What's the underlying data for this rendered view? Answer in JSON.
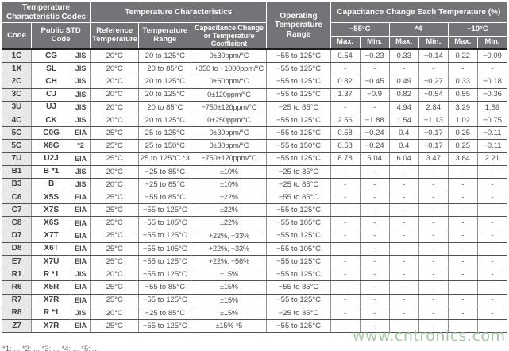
{
  "table": {
    "header": {
      "group_codes": "Temperature Characteristic Codes",
      "group_characteristics": "Temperature Characteristics",
      "col_code": "Code",
      "col_public_std": "Public STD Code",
      "col_ref_temp": "Reference Temperature",
      "col_temp_range": "Temperature Range",
      "col_cap_change": "Capacitance Change or Temperature Coefficient",
      "col_op_range": "Operating Temperature Range",
      "group_cap_each": "Capacitance Change Each Temperature (%)",
      "temp_groups": [
        "−55°C",
        "*4",
        "−10°C"
      ],
      "max_label": "Max.",
      "min_label": "Min."
    },
    "rows": [
      [
        "1C",
        "CG",
        "JIS",
        "20°C",
        "20 to 125°C",
        "0±30ppm/°C",
        "−55 to 125°C",
        "0.54",
        "−0.23",
        "0.33",
        "−0.14",
        "0.22",
        "−0.09"
      ],
      [
        "1X",
        "SL",
        "JIS",
        "20°C",
        "20 to 85°C",
        "+350 to −1000ppm/°C",
        "−55 to 125°C",
        "-",
        "-",
        "-",
        "-",
        "-",
        "-"
      ],
      [
        "2C",
        "CH",
        "JIS",
        "20°C",
        "20 to 125°C",
        "0±60ppm/°C",
        "−55 to 125°C",
        "0.82",
        "−0.45",
        "0.49",
        "−0.27",
        "0.33",
        "−0.18"
      ],
      [
        "3C",
        "CJ",
        "JIS",
        "20°C",
        "20 to 125°C",
        "0±120ppm/°C",
        "−55 to 125°C",
        "1.37",
        "−0.9",
        "0.82",
        "−0.54",
        "0.55",
        "−0.36"
      ],
      [
        "3U",
        "UJ",
        "JIS",
        "20°C",
        "20 to 85°C",
        "−750±120ppm/°C",
        "−25 to 85°C",
        "-",
        "-",
        "4.94",
        "2.84",
        "3.29",
        "1.89"
      ],
      [
        "4C",
        "CK",
        "JIS",
        "20°C",
        "20 to 125°C",
        "0±250ppm/°C",
        "−55 to 125°C",
        "2.56",
        "−1.88",
        "1.54",
        "−1.13",
        "1.02",
        "−0.75"
      ],
      [
        "5C",
        "C0G",
        "EIA",
        "25°C",
        "25 to 125°C",
        "0±30ppm/°C",
        "−55 to 125°C",
        "0.58",
        "−0.24",
        "0.4",
        "−0.17",
        "0.25",
        "−0.11"
      ],
      [
        "5G",
        "X8G",
        "*2",
        "25°C",
        "25 to 150°C",
        "0±30ppm/°C",
        "−55 to 150°C",
        "0.58",
        "−0.24",
        "0.4",
        "−0.17",
        "0.25",
        "−0.11"
      ],
      [
        "7U",
        "U2J",
        "EIA",
        "25°C",
        "25 to 125°C *3",
        "−750±120ppm/°C",
        "−55 to 125°C",
        "8.78",
        "5.04",
        "6.04",
        "3.47",
        "3.84",
        "2.21"
      ],
      [
        "B1",
        "B *1",
        "JIS",
        "20°C",
        "−25 to 85°C",
        "±10%",
        "−25 to 85°C",
        "-",
        "-",
        "-",
        "-",
        "-",
        "-"
      ],
      [
        "B3",
        "B",
        "JIS",
        "20°C",
        "−25 to 85°C",
        "±10%",
        "−25 to 85°C",
        "-",
        "-",
        "-",
        "-",
        "-",
        "-"
      ],
      [
        "C6",
        "X5S",
        "EIA",
        "25°C",
        "−55 to 85°C",
        "±22%",
        "−55 to 85°C",
        "-",
        "-",
        "-",
        "-",
        "-",
        "-"
      ],
      [
        "C7",
        "X7S",
        "EIA",
        "25°C",
        "−55 to 125°C",
        "±22%",
        "−55 to 125°C",
        "-",
        "-",
        "-",
        "-",
        "-",
        "-"
      ],
      [
        "C8",
        "X6S",
        "EIA",
        "25°C",
        "−55 to 105°C",
        "±22%",
        "−55 to 105°C",
        "-",
        "-",
        "-",
        "-",
        "-",
        "-"
      ],
      [
        "D7",
        "X7T",
        "EIA",
        "25°C",
        "−55 to 125°C",
        "+22%, −33%",
        "−55 to 125°C",
        "-",
        "-",
        "-",
        "-",
        "-",
        "-"
      ],
      [
        "D8",
        "X6T",
        "EIA",
        "25°C",
        "−55 to 105°C",
        "+22%, −33%",
        "−55 to 105°C",
        "-",
        "-",
        "-",
        "-",
        "-",
        "-"
      ],
      [
        "E7",
        "X7U",
        "EIA",
        "25°C",
        "−55 to 125°C",
        "+22%, −56%",
        "−55 to 125°C",
        "-",
        "-",
        "-",
        "-",
        "-",
        "-"
      ],
      [
        "R1",
        "R *1",
        "JIS",
        "20°C",
        "−55 to 125°C",
        "±15%",
        "−55 to 125°C",
        "-",
        "-",
        "-",
        "-",
        "-",
        "-"
      ],
      [
        "R6",
        "X5R",
        "EIA",
        "25°C",
        "−55 to 85°C",
        "±15%",
        "−55 to 85°C",
        "-",
        "-",
        "-",
        "-",
        "-",
        "-"
      ],
      [
        "R7",
        "X7R",
        "EIA",
        "25°C",
        "−55 to 125°C",
        "±15%",
        "−55 to 125°C",
        "-",
        "-",
        "-",
        "-",
        "-",
        "-"
      ],
      [
        "R8",
        "R *1",
        "JIS",
        "20°C",
        "−25 to 85°C",
        "±15%",
        "−25 to 85°C",
        "-",
        "-",
        "-",
        "-",
        "-",
        "-"
      ],
      [
        "Z7",
        "X7R",
        "EIA",
        "25°C",
        "−55 to 125°C",
        "±15% *5",
        "−55 to 125°C",
        "-",
        "-",
        "-",
        "-",
        "-",
        "-"
      ]
    ]
  },
  "footnote_partial": "*1: ...   *2: ...   *3: ...   *4: ...   *5: ...",
  "watermark": "www.cntronics.com",
  "colors": {
    "header_bg": "#737478",
    "header_text": "#fbfbfb",
    "code_column_bg": "#e7e8e9",
    "row_border": "#515255",
    "column_border": "#8f9093",
    "watermark_green": "#a9c6a9"
  }
}
